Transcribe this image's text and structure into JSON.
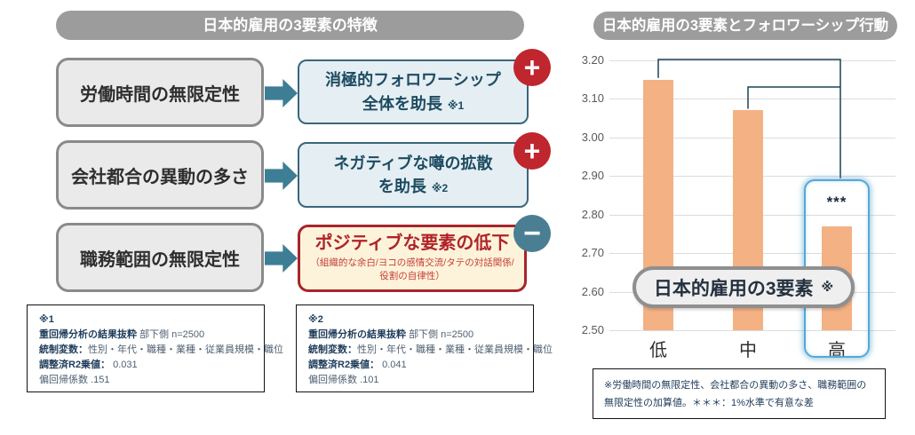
{
  "left_panel": {
    "title": "日本的雇用の3要素の特徴",
    "rows": [
      {
        "source": "労働時間の無限定性",
        "result_line1": "消極的フォロワーシップ",
        "result_line2": "全体を助長",
        "note_ref": "※1",
        "badge": "+"
      },
      {
        "source": "会社都合の異動の多さ",
        "result_line1": "ネガティブな噂の拡散",
        "result_line2": "を助長",
        "note_ref": "※2",
        "badge": "+"
      },
      {
        "source": "職務範囲の無限定性",
        "result_title": "ポジティブな要素の低下",
        "result_sub": "（組織的な余白/ヨコの感情交流/タテの対話関係/役割の自律性）",
        "badge": "−"
      }
    ],
    "notes": [
      {
        "ref": "※1",
        "analysis_label": "重回帰分析の結果抜粋",
        "analysis_detail": "部下側 n=2500",
        "control_label": "統制変数：",
        "control_detail": "性別・年代・職種・業種・従業員規模・職位",
        "r2_label": "調整済R2乗値：",
        "r2_value": "0.031",
        "coef_label": "偏回帰係数",
        "coef_value": ".151"
      },
      {
        "ref": "※2",
        "analysis_label": "重回帰分析の結果抜粋",
        "analysis_detail": "部下側 n=2500",
        "control_label": "統制変数：",
        "control_detail": "性別・年代・職種・業種・従業員規模・職位",
        "r2_label": "調整済R2乗値：",
        "r2_value": "0.041",
        "coef_label": "偏回帰係数",
        "coef_value": ".101"
      }
    ]
  },
  "right_panel": {
    "title": "日本的雇用の3要素とフォロワーシップ行動",
    "overlay_label": "日本的雇用の3要素",
    "overlay_ref": "※",
    "significance": "***",
    "highlighted_category": "高",
    "footnote_line1": "※労働時間の無限定性、会社都合の異動の多さ、職務範囲の",
    "footnote_line2": "無限定性の加算値。＊＊＊：1%水準で有意な差"
  },
  "chart_data": {
    "type": "bar",
    "title": "日本的雇用の3要素とフォロワーシップ行動",
    "categories": [
      "低",
      "中",
      "高"
    ],
    "values": [
      3.15,
      3.07,
      2.77
    ],
    "xlabel": "日本的雇用の3要素 ※",
    "ylabel": "",
    "ylim": [
      2.5,
      3.2
    ],
    "yticks": [
      "3.20",
      "3.10",
      "3.00",
      "2.90",
      "2.80",
      "2.70",
      "2.60",
      "2.50"
    ],
    "grid": true,
    "legend": false,
    "bar_color": "#f4b183",
    "annotations": [
      {
        "text": "***",
        "category": "高"
      }
    ],
    "significance_brackets": [
      {
        "from": "低",
        "to": "高"
      },
      {
        "from": "中",
        "to": "高"
      }
    ]
  },
  "colors": {
    "pill_gray": "#9c9c9c",
    "bar_orange": "#f4b183",
    "badge_plus_red": "#c0262d",
    "badge_minus_teal": "#4a7e93",
    "arrow_teal": "#3e7e95",
    "result_box_blue_bg": "#e4eef3",
    "result_box_blue_border": "#38677c",
    "negative_box_bg": "#fdf3da",
    "negative_box_border": "#a8242c",
    "highlight_blue": "#57a7d4",
    "bracket_line": "#1b4257"
  }
}
